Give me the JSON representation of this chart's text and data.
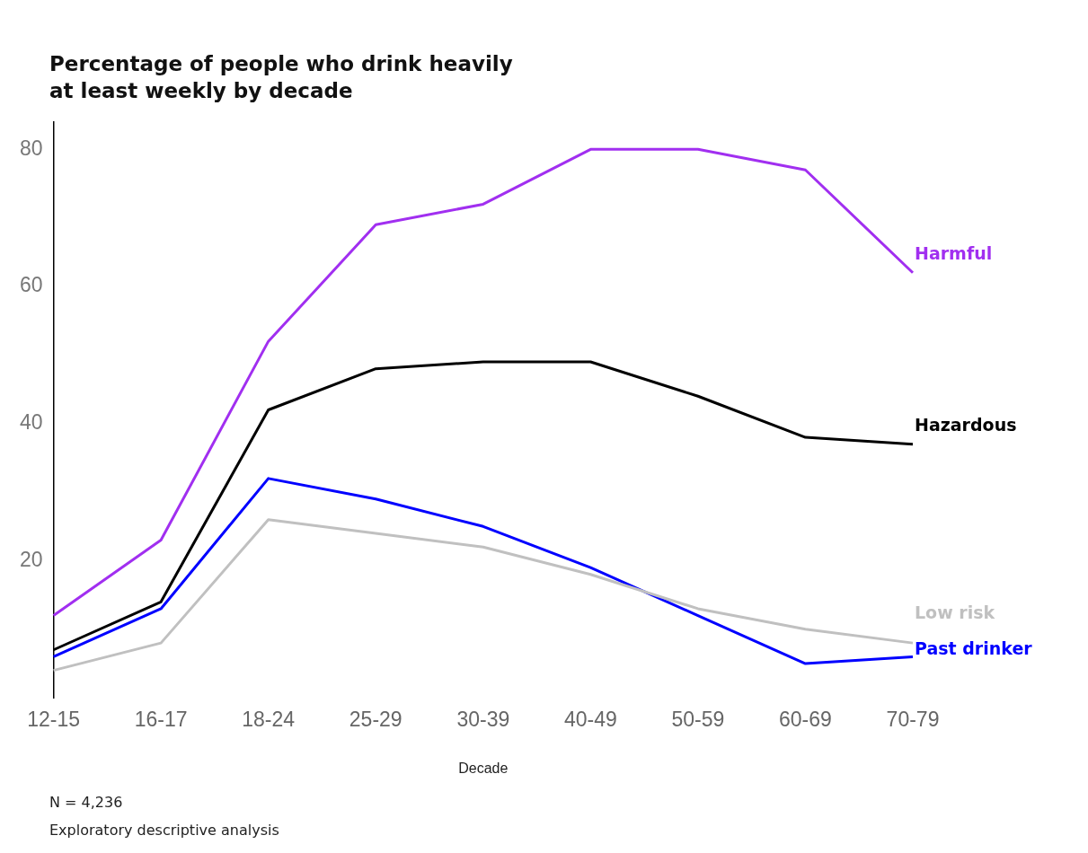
{
  "chart_data": {
    "type": "line",
    "title": "Percentage of people who drink heavily\nat least weekly by decade",
    "xlabel": "Decade",
    "categories": [
      "12-15",
      "16-17",
      "18-24",
      "25-29",
      "30-39",
      "40-49",
      "50-59",
      "60-69",
      "70-79"
    ],
    "series": [
      {
        "name": "Harmful",
        "color": "#a12ff0",
        "values": [
          12,
          23,
          52,
          69,
          72,
          80,
          80,
          77,
          62
        ]
      },
      {
        "name": "Hazardous",
        "color": "#000000",
        "values": [
          7,
          14,
          42,
          48,
          49,
          49,
          44,
          38,
          37
        ]
      },
      {
        "name": "Low risk",
        "color": "#c0c0c0",
        "values": [
          4,
          8,
          26,
          24,
          22,
          18,
          13,
          10,
          8
        ]
      },
      {
        "name": "Past drinker",
        "color": "#0000ff",
        "values": [
          6,
          13,
          32,
          29,
          25,
          19,
          12,
          5,
          6
        ]
      }
    ],
    "ylim": [
      0,
      84
    ],
    "yticks": [
      20,
      40,
      60,
      80
    ],
    "grid": false,
    "legend": false,
    "marker": "none",
    "line_style": "solid",
    "annotations": [
      "N = 4,236",
      "Exploratory descriptive analysis"
    ]
  }
}
